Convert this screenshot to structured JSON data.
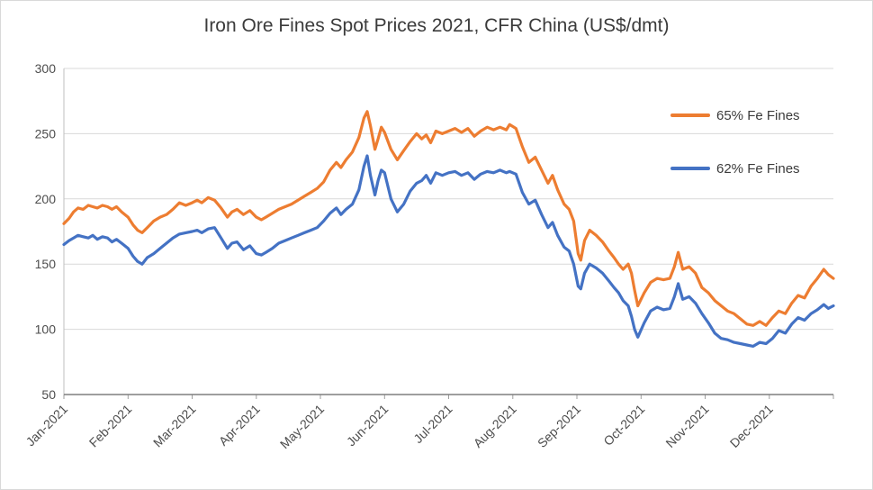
{
  "title": "Iron Ore Fines Spot Prices 2021, CFR China (US$/dmt)",
  "chart_data": {
    "type": "line",
    "title": "Iron Ore Fines Spot Prices 2021, CFR China (US$/dmt)",
    "xlabel": "",
    "ylabel": "",
    "x_unit": "months since 1 Jan 2021 (fractional)",
    "xlim": [
      0,
      12
    ],
    "ylim": [
      50,
      300
    ],
    "yticks": [
      50,
      100,
      150,
      200,
      250,
      300
    ],
    "grid": "horizontal",
    "legend_position": "inside-top-right",
    "x_labels": [
      "Jan-2021",
      "Feb-2021",
      "Mar-2021",
      "Apr-2021",
      "May-2021",
      "Jun-2021",
      "Jul-2021",
      "Aug-2021",
      "Sep-2021",
      "Oct-2021",
      "Nov-2021",
      "Dec-2021"
    ],
    "x": [
      0,
      0.08,
      0.15,
      0.22,
      0.3,
      0.38,
      0.45,
      0.52,
      0.6,
      0.68,
      0.75,
      0.82,
      0.9,
      1.0,
      1.08,
      1.15,
      1.22,
      1.3,
      1.4,
      1.5,
      1.6,
      1.7,
      1.8,
      1.9,
      2.0,
      2.08,
      2.15,
      2.25,
      2.35,
      2.45,
      2.55,
      2.62,
      2.7,
      2.8,
      2.9,
      3.0,
      3.08,
      3.15,
      3.25,
      3.35,
      3.45,
      3.55,
      3.65,
      3.75,
      3.85,
      3.95,
      4.05,
      4.15,
      4.25,
      4.32,
      4.4,
      4.5,
      4.6,
      4.68,
      4.73,
      4.78,
      4.85,
      4.9,
      4.95,
      5.0,
      5.1,
      5.2,
      5.3,
      5.4,
      5.5,
      5.58,
      5.65,
      5.72,
      5.8,
      5.9,
      6.0,
      6.1,
      6.2,
      6.3,
      6.4,
      6.5,
      6.6,
      6.7,
      6.8,
      6.9,
      6.95,
      7.05,
      7.15,
      7.25,
      7.35,
      7.45,
      7.55,
      7.62,
      7.7,
      7.8,
      7.88,
      7.95,
      8.02,
      8.06,
      8.12,
      8.2,
      8.3,
      8.4,
      8.5,
      8.58,
      8.65,
      8.72,
      8.8,
      8.85,
      8.9,
      8.95,
      9.05,
      9.15,
      9.25,
      9.35,
      9.45,
      9.52,
      9.58,
      9.65,
      9.75,
      9.85,
      9.95,
      10.05,
      10.15,
      10.25,
      10.35,
      10.45,
      10.55,
      10.65,
      10.75,
      10.85,
      10.95,
      11.05,
      11.15,
      11.25,
      11.35,
      11.45,
      11.55,
      11.65,
      11.75,
      11.85,
      11.92,
      12.0
    ],
    "series": [
      {
        "name": "65% Fe Fines",
        "color": "#ED7D31",
        "values": [
          181,
          185,
          190,
          193,
          192,
          195,
          194,
          193,
          195,
          194,
          192,
          194,
          190,
          186,
          180,
          176,
          174,
          178,
          183,
          186,
          188,
          192,
          197,
          195,
          197,
          199,
          197,
          201,
          199,
          193,
          186,
          190,
          192,
          188,
          191,
          186,
          184,
          186,
          189,
          192,
          194,
          196,
          199,
          202,
          205,
          208,
          213,
          222,
          228,
          224,
          230,
          236,
          247,
          262,
          267,
          256,
          238,
          246,
          255,
          251,
          238,
          230,
          237,
          244,
          250,
          246,
          249,
          243,
          252,
          250,
          252,
          254,
          251,
          254,
          248,
          252,
          255,
          253,
          255,
          253,
          257,
          254,
          240,
          228,
          232,
          222,
          212,
          218,
          207,
          196,
          192,
          183,
          158,
          153,
          168,
          176,
          172,
          167,
          160,
          155,
          150,
          146,
          150,
          143,
          130,
          118,
          128,
          136,
          139,
          138,
          139,
          148,
          159,
          146,
          148,
          143,
          132,
          128,
          122,
          118,
          114,
          112,
          108,
          104,
          103,
          106,
          103,
          109,
          114,
          112,
          120,
          126,
          124,
          133,
          139,
          146,
          142,
          139
        ]
      },
      {
        "name": "62% Fe Fines",
        "color": "#4472C4",
        "values": [
          165,
          168,
          170,
          172,
          171,
          170,
          172,
          169,
          171,
          170,
          167,
          169,
          166,
          162,
          156,
          152,
          150,
          155,
          158,
          162,
          166,
          170,
          173,
          174,
          175,
          176,
          174,
          177,
          178,
          170,
          162,
          166,
          167,
          161,
          164,
          158,
          157,
          159,
          162,
          166,
          168,
          170,
          172,
          174,
          176,
          178,
          183,
          189,
          193,
          188,
          192,
          196,
          207,
          225,
          233,
          218,
          203,
          214,
          222,
          220,
          200,
          190,
          196,
          206,
          212,
          214,
          218,
          212,
          220,
          218,
          220,
          221,
          218,
          220,
          215,
          219,
          221,
          220,
          222,
          220,
          221,
          219,
          205,
          196,
          199,
          188,
          178,
          182,
          172,
          163,
          160,
          150,
          133,
          131,
          143,
          150,
          147,
          143,
          137,
          132,
          128,
          122,
          118,
          110,
          100,
          94,
          105,
          114,
          117,
          115,
          116,
          125,
          135,
          123,
          125,
          120,
          112,
          105,
          97,
          93,
          92,
          90,
          89,
          88,
          87,
          90,
          89,
          93,
          99,
          97,
          104,
          109,
          107,
          112,
          115,
          119,
          116,
          118
        ]
      }
    ]
  }
}
